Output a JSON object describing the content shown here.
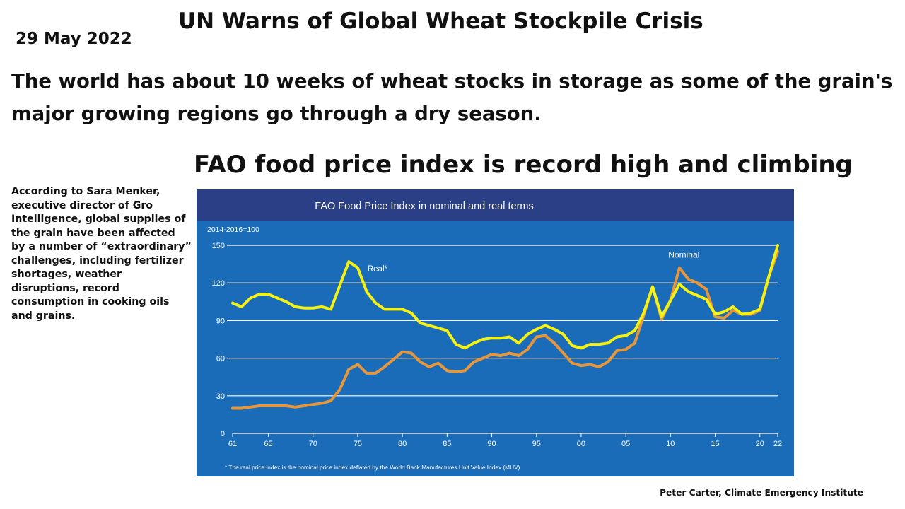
{
  "header": {
    "date": "29 May 2022",
    "headline": "UN Warns of Global Wheat Stockpile Crisis",
    "summary": "The world has about 10 weeks of wheat stocks in storage as some of the grain's major growing regions go through a dry season.",
    "subheadline": "FAO food price index is record high and climbing"
  },
  "side_note": "According to Sara Menker, executive director of Gro Intelligence, global supplies of the grain have been affected by a number of “extraordinary” challenges, including fertilizer shortages, weather disruptions, record consumption in cooking oils and grains.",
  "credit": "Peter Carter, Climate Emergency Institute",
  "colors": {
    "panel_bg": "#1b6cb8",
    "title_band": "#2b3f86",
    "real_line": "#f4f113",
    "nominal_line": "#e7973a",
    "grid": "#ffffff"
  },
  "chart_data": {
    "type": "line",
    "title": "FAO Food Price Index in nominal and real terms",
    "ylabel": "2014-2016=100",
    "xlabel": "",
    "ylim": [
      0,
      150
    ],
    "xlim": [
      1961,
      2022
    ],
    "y_ticks": [
      0,
      30,
      60,
      90,
      120,
      150
    ],
    "x_ticks": [
      1961,
      1965,
      1970,
      1975,
      1980,
      1985,
      1990,
      1995,
      2000,
      2005,
      2010,
      2015,
      2020,
      2022
    ],
    "x_tick_labels": [
      "61",
      "65",
      "70",
      "75",
      "80",
      "85",
      "90",
      "95",
      "00",
      "05",
      "10",
      "15",
      "20",
      "22"
    ],
    "grid": true,
    "footnote": "* The real price index is the nominal price index deflated by the World Bank Manufactures Unit Value Index (MUV)",
    "x": [
      1961,
      1962,
      1963,
      1964,
      1965,
      1966,
      1967,
      1968,
      1969,
      1970,
      1971,
      1972,
      1973,
      1974,
      1975,
      1976,
      1977,
      1978,
      1979,
      1980,
      1981,
      1982,
      1983,
      1984,
      1985,
      1986,
      1987,
      1988,
      1989,
      1990,
      1991,
      1992,
      1993,
      1994,
      1995,
      1996,
      1997,
      1998,
      1999,
      2000,
      2001,
      2002,
      2003,
      2004,
      2005,
      2006,
      2007,
      2008,
      2009,
      2010,
      2011,
      2012,
      2013,
      2014,
      2015,
      2016,
      2017,
      2018,
      2019,
      2020,
      2021,
      2022
    ],
    "series": [
      {
        "name": "Real*",
        "label": "Real*",
        "values": [
          104,
          101,
          108,
          111,
          111,
          108,
          105,
          101,
          100,
          100,
          101,
          99,
          118,
          137,
          132,
          113,
          104,
          99,
          99,
          99,
          96,
          88,
          86,
          84,
          82,
          71,
          68,
          72,
          75,
          76,
          76,
          77,
          72,
          79,
          83,
          86,
          83,
          79,
          70,
          68,
          71,
          71,
          72,
          77,
          78,
          82,
          96,
          117,
          93,
          106,
          119,
          113,
          110,
          107,
          95,
          97,
          101,
          95,
          96,
          99,
          125,
          150
        ]
      },
      {
        "name": "Nominal",
        "label": "Nominal",
        "values": [
          20,
          20,
          21,
          22,
          22,
          22,
          22,
          21,
          22,
          23,
          24,
          26,
          35,
          51,
          55,
          48,
          48,
          53,
          59,
          65,
          64,
          57,
          53,
          56,
          50,
          49,
          50,
          57,
          60,
          63,
          62,
          64,
          62,
          67,
          77,
          78,
          72,
          64,
          56,
          54,
          55,
          53,
          57,
          66,
          67,
          72,
          94,
          117,
          91,
          106,
          132,
          123,
          120,
          115,
          93,
          92,
          98,
          95,
          95,
          98,
          125,
          145
        ]
      }
    ]
  }
}
